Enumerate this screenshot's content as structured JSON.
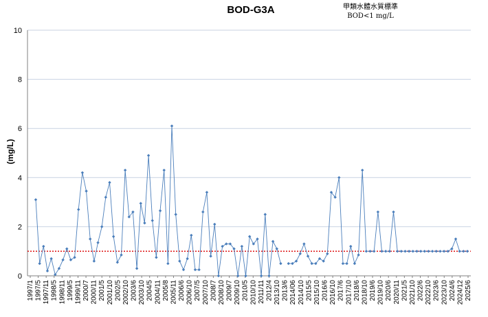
{
  "chart_data": {
    "type": "line",
    "title": "BOD-G3A",
    "standard_note_line1": "甲類水體水質標準",
    "standard_note_line2": "BOD<1 mg/L",
    "ylabel": "(mg/L)",
    "xlabel": "",
    "ylim": [
      0,
      10
    ],
    "yticks": [
      0,
      2,
      4,
      6,
      8,
      10
    ],
    "grid": "horizontal",
    "legend": "none",
    "x_tick_labels": [
      "1997/1",
      "1997/5",
      "1997/11",
      "1998/5",
      "1998/11",
      "1999/5",
      "1999/11",
      "2000/7",
      "2000/11",
      "2001/5",
      "2001/10",
      "2002/5",
      "2002/10",
      "2003/6",
      "2003/10",
      "2004/5",
      "2004/11",
      "2005/8",
      "2005/11",
      "2006/6",
      "2006/10",
      "2007/5",
      "2007/10",
      "2008/7",
      "2008/10",
      "2009/7",
      "2009/10",
      "2010/5",
      "2010/10",
      "2011/11",
      "2012/4",
      "2013/10",
      "2013/6",
      "2014/06",
      "2014/10",
      "2015/5",
      "2015/10",
      "2016/6",
      "2016/10",
      "2017/6",
      "2017/10",
      "2018/6",
      "2018/10",
      "2019/6",
      "2019/10",
      "2020/6",
      "2020/11",
      "2021/5",
      "2021/10",
      "2022/6",
      "2022/10",
      "2023/6",
      "2023/10",
      "2024/6",
      "2024/12",
      "2025/6"
    ],
    "series": [
      {
        "values": [
          3.1,
          0.5,
          1.2,
          0.2,
          0.7,
          0.05,
          0.3,
          0.65,
          1.1,
          0.65,
          0.75,
          2.7,
          4.2,
          3.45,
          1.5,
          0.6,
          1.35,
          2.0,
          3.2,
          3.8,
          1.6,
          0.55,
          0.85,
          4.3,
          2.4,
          2.6,
          0.3,
          2.95,
          2.15,
          4.9,
          2.25,
          0.75,
          2.65,
          4.3,
          0.5,
          6.1,
          2.5,
          0.6,
          0.25,
          0.7,
          1.65,
          0.25,
          0.25,
          2.6,
          3.4,
          0.8,
          2.1,
          0.0,
          1.2,
          1.3,
          1.3,
          1.1,
          0.0,
          1.2,
          0.0,
          1.6,
          1.3,
          1.5,
          0.0,
          2.5,
          0.0,
          1.4,
          1.1,
          0.5,
          null,
          0.5,
          0.5,
          0.6,
          0.9,
          1.3,
          0.8,
          0.5,
          0.5,
          0.7,
          0.6,
          0.9,
          3.4,
          3.2,
          4.0,
          0.5,
          0.5,
          1.2,
          0.5,
          0.85,
          4.3,
          1.0,
          1.0,
          1.0,
          2.6,
          1.0,
          1.0,
          1.0,
          2.6,
          1.0,
          1.0,
          1.0,
          1.0,
          1.0,
          1.0,
          1.0,
          1.0,
          1.0,
          1.0,
          1.0,
          1.0,
          1.0,
          1.0,
          1.1,
          1.5,
          1.0,
          1.0,
          1.0
        ],
        "color": "#4a7ebb"
      }
    ],
    "reference_line": {
      "value": 1,
      "color": "#e02020"
    }
  }
}
